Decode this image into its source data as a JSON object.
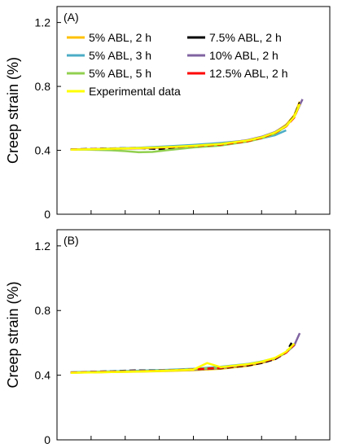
{
  "chart_data": [
    {
      "type": "line",
      "panel_label": "(A)",
      "xlabel": "",
      "ylabel": "Creep strain (%)",
      "ylim": [
        0,
        1.3
      ],
      "yticks": [
        "0",
        "0.4",
        "0.8",
        "1.2"
      ],
      "ytick_values": [
        0,
        0.4,
        0.8,
        1.2
      ],
      "xlim": [
        0,
        1
      ],
      "grid": false,
      "legend_position": "top-left, two columns",
      "series": [
        {
          "name": "5% ABL, 2 h",
          "color": "#FFC000",
          "dashed": false,
          "x": [
            0.05,
            0.1,
            0.2,
            0.3,
            0.4,
            0.5,
            0.6,
            0.7,
            0.75,
            0.8,
            0.84,
            0.87,
            0.89
          ],
          "y": [
            0.405,
            0.406,
            0.409,
            0.412,
            0.417,
            0.425,
            0.437,
            0.462,
            0.482,
            0.515,
            0.56,
            0.62,
            0.705
          ]
        },
        {
          "name": "7.5% ABL, 2 h",
          "color": "#000000",
          "dashed": true,
          "x": [
            0.05,
            0.1,
            0.2,
            0.3,
            0.4,
            0.5,
            0.6,
            0.7,
            0.75,
            0.8,
            0.84,
            0.87,
            0.89
          ],
          "y": [
            0.406,
            0.408,
            0.412,
            0.415,
            0.405,
            0.42,
            0.435,
            0.46,
            0.48,
            0.51,
            0.555,
            0.615,
            0.7
          ]
        },
        {
          "name": "5% ABL, 3 h",
          "color": "#4BACC6",
          "dashed": false,
          "x": [
            0.05,
            0.1,
            0.2,
            0.3,
            0.4,
            0.5,
            0.6,
            0.7,
            0.75,
            0.8,
            0.84
          ],
          "y": [
            0.405,
            0.407,
            0.411,
            0.416,
            0.424,
            0.434,
            0.446,
            0.462,
            0.475,
            0.495,
            0.525
          ]
        },
        {
          "name": "10% ABL, 2 h",
          "color": "#8064A2",
          "dashed": false,
          "x": [
            0.05,
            0.1,
            0.2,
            0.3,
            0.4,
            0.5,
            0.6,
            0.7,
            0.75,
            0.8,
            0.84,
            0.87,
            0.9
          ],
          "y": [
            0.405,
            0.406,
            0.41,
            0.413,
            0.419,
            0.427,
            0.44,
            0.465,
            0.485,
            0.515,
            0.555,
            0.61,
            0.72
          ]
        },
        {
          "name": "5% ABL, 5 h",
          "color": "#92D050",
          "dashed": false,
          "x": [
            0.05,
            0.1,
            0.2,
            0.25,
            0.3,
            0.35,
            0.4,
            0.5,
            0.6,
            0.7,
            0.75,
            0.8,
            0.84,
            0.87,
            0.89
          ],
          "y": [
            0.405,
            0.405,
            0.4,
            0.395,
            0.388,
            0.39,
            0.4,
            0.418,
            0.43,
            0.455,
            0.475,
            0.505,
            0.55,
            0.61,
            0.69
          ]
        },
        {
          "name": "12.5% ABL, 2 h",
          "color": "#FF0000",
          "dashed": true,
          "x": [
            0.05,
            0.1,
            0.2,
            0.3,
            0.4,
            0.5,
            0.6,
            0.7,
            0.75,
            0.8,
            0.84,
            0.87,
            0.89
          ],
          "y": [
            0.405,
            0.407,
            0.41,
            0.414,
            0.418,
            0.426,
            0.436,
            0.458,
            0.478,
            0.51,
            0.55,
            0.605,
            0.69
          ]
        },
        {
          "name": "Experimental data",
          "color": "#FFFF00",
          "dashed": false,
          "x": [
            0.05,
            0.1,
            0.2,
            0.3,
            0.4,
            0.5,
            0.6,
            0.7,
            0.75,
            0.8,
            0.84,
            0.87,
            0.89
          ],
          "y": [
            0.404,
            0.406,
            0.41,
            0.414,
            0.42,
            0.428,
            0.44,
            0.462,
            0.482,
            0.512,
            0.552,
            0.61,
            0.69
          ]
        }
      ]
    },
    {
      "type": "line",
      "panel_label": "(B)",
      "xlabel": "",
      "ylabel": "Creep strain (%)",
      "ylim": [
        0,
        1.3
      ],
      "yticks": [
        "0",
        "0.4",
        "0.8",
        "1.2"
      ],
      "ytick_values": [
        0,
        0.4,
        0.8,
        1.2
      ],
      "xlim": [
        0,
        1
      ],
      "grid": false,
      "series": [
        {
          "color": "#FFC000",
          "dashed": false,
          "x": [
            0.05,
            0.1,
            0.2,
            0.3,
            0.4,
            0.5,
            0.6,
            0.7,
            0.75,
            0.8,
            0.84,
            0.87
          ],
          "y": [
            0.416,
            0.417,
            0.419,
            0.422,
            0.426,
            0.431,
            0.44,
            0.458,
            0.475,
            0.5,
            0.54,
            0.59
          ]
        },
        {
          "color": "#000000",
          "dashed": true,
          "x": [
            0.05,
            0.1,
            0.2,
            0.3,
            0.4,
            0.5,
            0.6,
            0.7,
            0.75,
            0.8,
            0.84,
            0.86
          ],
          "y": [
            0.417,
            0.419,
            0.425,
            0.43,
            0.432,
            0.435,
            0.443,
            0.46,
            0.475,
            0.5,
            0.54,
            0.6
          ]
        },
        {
          "color": "#4BACC6",
          "dashed": false,
          "x": [
            0.05,
            0.1,
            0.2,
            0.3,
            0.4,
            0.5,
            0.6,
            0.7,
            0.75,
            0.8,
            0.84,
            0.87
          ],
          "y": [
            0.418,
            0.42,
            0.424,
            0.428,
            0.433,
            0.44,
            0.452,
            0.47,
            0.485,
            0.505,
            0.54,
            0.59
          ]
        },
        {
          "color": "#8064A2",
          "dashed": false,
          "x": [
            0.05,
            0.1,
            0.2,
            0.3,
            0.4,
            0.5,
            0.6,
            0.7,
            0.75,
            0.8,
            0.84,
            0.87,
            0.89
          ],
          "y": [
            0.415,
            0.417,
            0.42,
            0.424,
            0.428,
            0.434,
            0.445,
            0.465,
            0.48,
            0.505,
            0.54,
            0.585,
            0.66
          ]
        },
        {
          "color": "#92D050",
          "dashed": false,
          "x": [
            0.05,
            0.1,
            0.2,
            0.3,
            0.4,
            0.5,
            0.6,
            0.7,
            0.75,
            0.8,
            0.84,
            0.87
          ],
          "y": [
            0.417,
            0.418,
            0.422,
            0.425,
            0.43,
            0.437,
            0.448,
            0.467,
            0.482,
            0.506,
            0.54,
            0.59
          ]
        },
        {
          "color": "#FF0000",
          "dashed": true,
          "x": [
            0.05,
            0.1,
            0.2,
            0.3,
            0.4,
            0.5,
            0.6,
            0.7,
            0.75,
            0.8,
            0.84,
            0.87
          ],
          "y": [
            0.416,
            0.418,
            0.421,
            0.425,
            0.429,
            0.436,
            0.446,
            0.465,
            0.48,
            0.505,
            0.54,
            0.59
          ]
        },
        {
          "color": "#FFFF00",
          "dashed": false,
          "x": [
            0.05,
            0.1,
            0.2,
            0.3,
            0.4,
            0.5,
            0.55,
            0.6,
            0.7,
            0.75,
            0.8,
            0.84,
            0.87
          ],
          "y": [
            0.414,
            0.416,
            0.419,
            0.423,
            0.428,
            0.435,
            0.475,
            0.45,
            0.468,
            0.483,
            0.508,
            0.545,
            0.595
          ]
        }
      ]
    }
  ]
}
